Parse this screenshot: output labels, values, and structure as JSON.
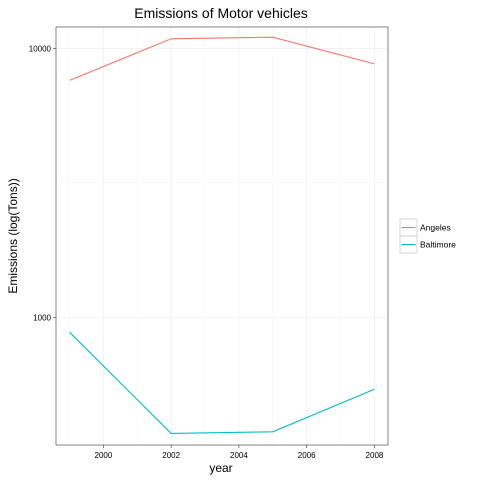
{
  "chart_data": {
    "type": "line",
    "title": "Emissions of Motor vehicles",
    "xlabel": "year",
    "ylabel": "Emissions (log(Tons))",
    "x": [
      1999,
      2002,
      2005,
      2008
    ],
    "xlim": [
      1998.6,
      2008.4
    ],
    "xticks": [
      2000,
      2002,
      2004,
      2006,
      2008
    ],
    "xtick_labels": [
      "2000",
      "2002",
      "2004",
      "2006",
      "2008"
    ],
    "yscale": "log",
    "ylim": [
      335,
      12000
    ],
    "yticks": [
      1000,
      10000
    ],
    "ytick_labels": [
      "1000",
      "10000"
    ],
    "grid": true,
    "legend_position": "right",
    "series": [
      {
        "name": "Angeles",
        "color": "#f8766d",
        "values": [
          7600,
          10850,
          11000,
          8750
        ]
      },
      {
        "name": "Baltimore",
        "color": "#00bfc4",
        "values": [
          880,
          370,
          375,
          540
        ]
      }
    ]
  }
}
